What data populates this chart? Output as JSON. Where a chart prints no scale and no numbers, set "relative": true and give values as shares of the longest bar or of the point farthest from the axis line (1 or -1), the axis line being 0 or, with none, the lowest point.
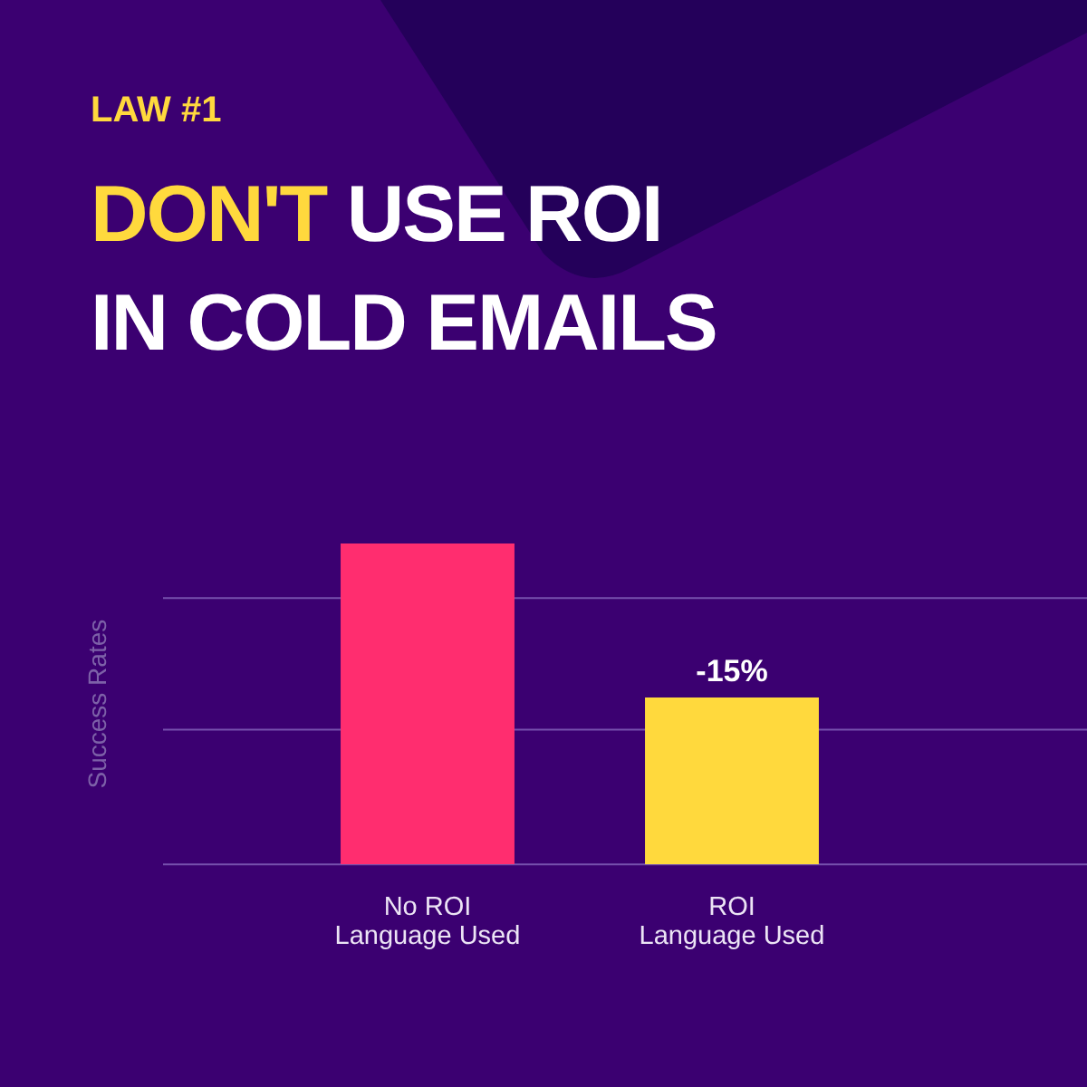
{
  "chart_data": {
    "type": "bar",
    "subtitle": "LAW #1",
    "title": "DON'T USE ROI IN COLD EMAILS",
    "ylabel": "Success Rates",
    "categories": [
      "No ROI Language Used",
      "ROI Language Used"
    ],
    "values": [
      1,
      0.52
    ],
    "colors": [
      "#ff2d6f",
      "#ffd93d"
    ],
    "relative": true,
    "ref_lines": [
      {
        "axis": "y",
        "value": 0.42,
        "color": "#7650ad"
      },
      {
        "axis": "y",
        "value": 0.83,
        "color": "#7650ad"
      }
    ],
    "annotations": [
      {
        "text": "-15%",
        "x": "ROI Language Used",
        "y": 0.52
      }
    ]
  }
}
